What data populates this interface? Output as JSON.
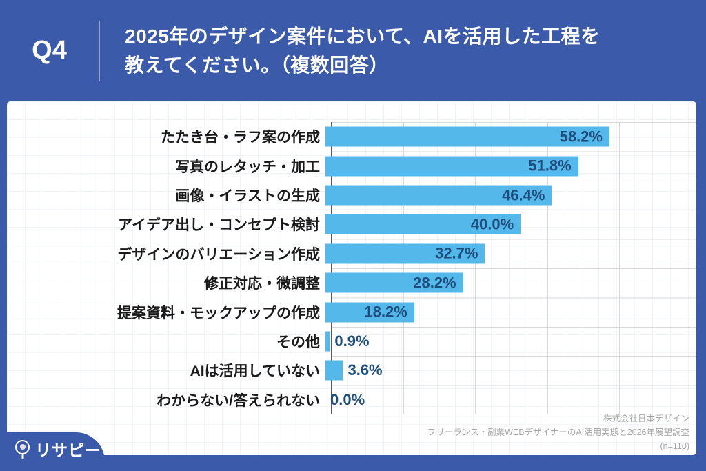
{
  "header": {
    "question_no": "Q4",
    "title_line1": "2025年のデザイン案件において、AIを活用した工程を",
    "title_line2": "教えてください。（複数回答）"
  },
  "chart_data": {
    "type": "bar",
    "orientation": "horizontal",
    "title": "2025年のデザイン案件において、AIを活用した工程（複数回答）",
    "categories": [
      "たたき台・ラフ案の作成",
      "写真のレタッチ・加工",
      "画像・イラストの生成",
      "アイデア出し・コンセプト検討",
      "デザインのバリエーション作成",
      "修正対応・微調整",
      "提案資料・モックアップの作成",
      "その他",
      "AIは活用していない",
      "わからない/答えられない"
    ],
    "values": [
      58.2,
      51.8,
      46.4,
      40.0,
      32.7,
      28.2,
      18.2,
      0.9,
      3.6,
      0.0
    ],
    "value_labels": [
      "58.2%",
      "51.8%",
      "46.4%",
      "40.0%",
      "32.7%",
      "28.2%",
      "18.2%",
      "0.9%",
      "3.6%",
      "0.0%"
    ],
    "xlabel": "",
    "ylabel": "",
    "xlim": [
      0,
      76
    ],
    "grid_values": [
      15,
      30,
      45,
      60,
      75
    ],
    "grid_on": true,
    "inside_label_min": 10,
    "legend": "none"
  },
  "source": {
    "line1": "株式会社日本デザイン",
    "line2": "フリーランス・副業WEBデザイナーのAI活用実態と2026年展望調査",
    "line3": "(n=110)"
  },
  "logo": {
    "text": "リサピー",
    "mark": "."
  },
  "colors": {
    "frame": "#3B5AA9",
    "bar": "#55B8EB",
    "valueText": "#1D4D7C",
    "grid": "#D9D9D9",
    "axis": "#595959",
    "sourceText": "#A6A6A6"
  }
}
